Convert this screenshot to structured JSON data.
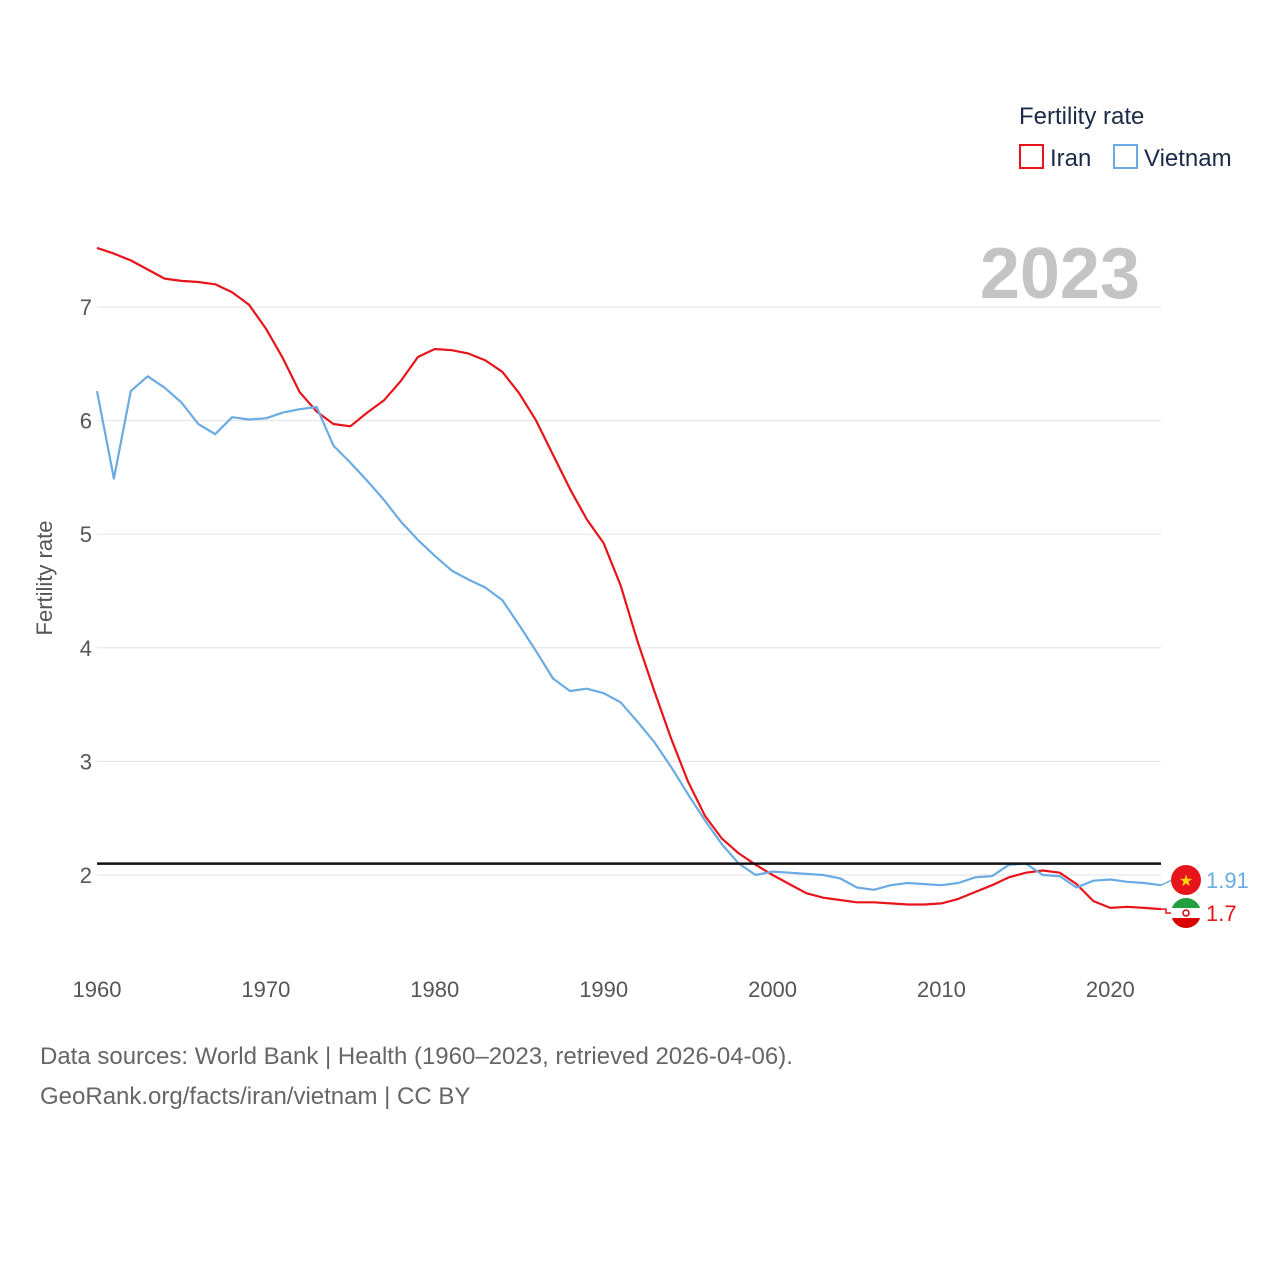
{
  "chart_data": {
    "type": "line",
    "title": "",
    "xlabel": "",
    "ylabel": "Fertility rate",
    "xlim": [
      1960,
      2023
    ],
    "ylim": [
      1.2,
      7.7
    ],
    "yticks": [
      2,
      3,
      4,
      5,
      6,
      7
    ],
    "xticks": [
      1960,
      1970,
      1980,
      1990,
      2000,
      2010,
      2020
    ],
    "reference_line": 2.1,
    "year_display": "2023",
    "legend_title": "Fertility rate",
    "x": [
      1960,
      1961,
      1962,
      1963,
      1964,
      1965,
      1966,
      1967,
      1968,
      1969,
      1970,
      1971,
      1972,
      1973,
      1974,
      1975,
      1976,
      1977,
      1978,
      1979,
      1980,
      1981,
      1982,
      1983,
      1984,
      1985,
      1986,
      1987,
      1988,
      1989,
      1990,
      1991,
      1992,
      1993,
      1994,
      1995,
      1996,
      1997,
      1998,
      1999,
      2000,
      2001,
      2002,
      2003,
      2004,
      2005,
      2006,
      2007,
      2008,
      2009,
      2010,
      2011,
      2012,
      2013,
      2014,
      2015,
      2016,
      2017,
      2018,
      2019,
      2020,
      2021,
      2022,
      2023
    ],
    "series": [
      {
        "name": "Iran",
        "color": "#e8141b",
        "end_label": "1.7",
        "values": [
          7.52,
          7.47,
          7.41,
          7.33,
          7.25,
          7.23,
          7.22,
          7.2,
          7.13,
          7.02,
          6.81,
          6.55,
          6.25,
          6.08,
          5.97,
          5.95,
          6.07,
          6.18,
          6.35,
          6.56,
          6.63,
          6.62,
          6.59,
          6.53,
          6.43,
          6.24,
          6.0,
          5.7,
          5.4,
          5.13,
          4.92,
          4.55,
          4.06,
          3.62,
          3.2,
          2.82,
          2.52,
          2.32,
          2.19,
          2.09,
          2.0,
          1.92,
          1.84,
          1.8,
          1.78,
          1.76,
          1.76,
          1.75,
          1.74,
          1.74,
          1.75,
          1.79,
          1.85,
          1.91,
          1.98,
          2.02,
          2.04,
          2.02,
          1.92,
          1.77,
          1.71,
          1.72,
          1.71,
          1.7
        ]
      },
      {
        "name": "Vietnam",
        "color": "#6aabe3",
        "end_label": "1.91",
        "values": [
          6.26,
          5.49,
          6.26,
          6.39,
          6.29,
          6.16,
          5.97,
          5.88,
          6.03,
          6.01,
          6.02,
          6.07,
          6.1,
          6.12,
          5.78,
          5.63,
          5.47,
          5.3,
          5.11,
          4.95,
          4.81,
          4.68,
          4.6,
          4.53,
          4.42,
          4.2,
          3.97,
          3.73,
          3.62,
          3.64,
          3.6,
          3.52,
          3.35,
          3.17,
          2.95,
          2.71,
          2.48,
          2.27,
          2.1,
          2.0,
          2.03,
          2.02,
          2.01,
          2.0,
          1.97,
          1.89,
          1.87,
          1.91,
          1.93,
          1.92,
          1.91,
          1.93,
          1.98,
          1.99,
          2.09,
          2.1,
          2.0,
          1.99,
          1.89,
          1.95,
          1.96,
          1.94,
          1.93,
          1.91
        ]
      }
    ]
  },
  "footer": {
    "source_line": "Data sources: World Bank | Health (1960–2023, retrieved 2026-04-06).",
    "url_line": "GeoRank.org/facts/iran/vietnam | CC BY"
  }
}
